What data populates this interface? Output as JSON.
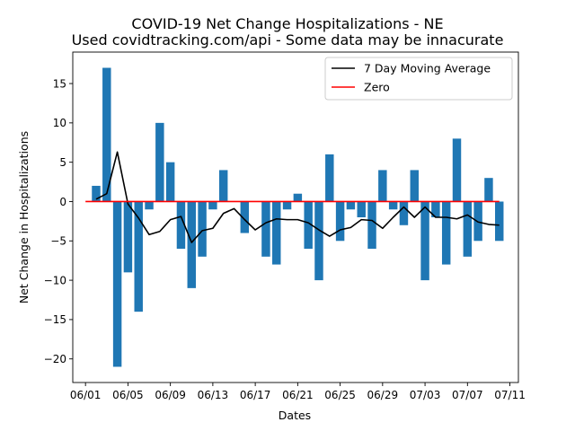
{
  "chart_data": {
    "type": "bar",
    "title_line1": "COVID-19 Net Change Hospitalizations - NE",
    "title_line2": "Used covidtracking.com/api - Some data may be innacurate",
    "xlabel": "Dates",
    "ylabel": "Net Change in Hospitalizations",
    "x_start": "2020-06-01",
    "x_tick_labels": [
      "06/01",
      "06/05",
      "06/09",
      "06/13",
      "06/17",
      "06/21",
      "06/25",
      "06/29",
      "07/03",
      "07/07",
      "07/11"
    ],
    "y_ticks": [
      -20,
      -15,
      -10,
      -5,
      0,
      5,
      10,
      15
    ],
    "ylim": [
      -23,
      19
    ],
    "xlim": [
      "2020-05-30",
      "2020-07-12"
    ],
    "grid": false,
    "legend_position": "top-right",
    "series": [
      {
        "name": "Net Change",
        "kind": "bar",
        "color": "#1f77b4",
        "dates": [
          "2020-06-02",
          "2020-06-03",
          "2020-06-04",
          "2020-06-05",
          "2020-06-06",
          "2020-06-07",
          "2020-06-08",
          "2020-06-09",
          "2020-06-10",
          "2020-06-11",
          "2020-06-12",
          "2020-06-13",
          "2020-06-14",
          "2020-06-15",
          "2020-06-16",
          "2020-06-17",
          "2020-06-18",
          "2020-06-19",
          "2020-06-20",
          "2020-06-21",
          "2020-06-22",
          "2020-06-23",
          "2020-06-24",
          "2020-06-25",
          "2020-06-26",
          "2020-06-27",
          "2020-06-28",
          "2020-06-29",
          "2020-06-30",
          "2020-07-01",
          "2020-07-02",
          "2020-07-03",
          "2020-07-04",
          "2020-07-05",
          "2020-07-06",
          "2020-07-07",
          "2020-07-08",
          "2020-07-09",
          "2020-07-10"
        ],
        "values": [
          2,
          17,
          -21,
          -9,
          -14,
          -1,
          10,
          5,
          -6,
          -11,
          -7,
          -1,
          4,
          0,
          -4,
          0,
          -7,
          -8,
          -1,
          1,
          -6,
          -10,
          6,
          -5,
          -1,
          -2,
          -6,
          4,
          -1,
          -3,
          4,
          -10,
          -2,
          -8,
          8,
          -7,
          -5,
          3,
          -5
        ]
      },
      {
        "name": "7 Day Moving Average",
        "kind": "line",
        "color": "#000000",
        "dates": [
          "2020-06-02",
          "2020-06-03",
          "2020-06-04",
          "2020-06-05",
          "2020-06-06",
          "2020-06-07",
          "2020-06-08",
          "2020-06-09",
          "2020-06-10",
          "2020-06-11",
          "2020-06-12",
          "2020-06-13",
          "2020-06-14",
          "2020-06-15",
          "2020-06-16",
          "2020-06-17",
          "2020-06-18",
          "2020-06-19",
          "2020-06-20",
          "2020-06-21",
          "2020-06-22",
          "2020-06-23",
          "2020-06-24",
          "2020-06-25",
          "2020-06-26",
          "2020-06-27",
          "2020-06-28",
          "2020-06-29",
          "2020-06-30",
          "2020-07-01",
          "2020-07-02",
          "2020-07-03",
          "2020-07-04",
          "2020-07-05",
          "2020-07-06",
          "2020-07-07",
          "2020-07-08",
          "2020-07-09",
          "2020-07-10"
        ],
        "values": [
          0.3,
          1.0,
          6.3,
          -0.3,
          -2.1,
          -4.2,
          -3.8,
          -2.3,
          -1.9,
          -5.2,
          -3.7,
          -3.4,
          -1.5,
          -0.9,
          -2.3,
          -3.6,
          -2.7,
          -2.2,
          -2.3,
          -2.3,
          -2.7,
          -3.6,
          -4.4,
          -3.6,
          -3.3,
          -2.3,
          -2.4,
          -3.4,
          -2.0,
          -0.7,
          -2.0,
          -0.7,
          -2.0,
          -2.0,
          -2.2,
          -1.7,
          -2.6,
          -2.9,
          -3.0
        ]
      },
      {
        "name": "Zero",
        "kind": "line",
        "color": "#ff0000",
        "dates": [
          "2020-06-01",
          "2020-06-10",
          "2020-06-20",
          "2020-06-30",
          "2020-07-10"
        ],
        "values": [
          0,
          0,
          0,
          0,
          0
        ]
      }
    ]
  }
}
